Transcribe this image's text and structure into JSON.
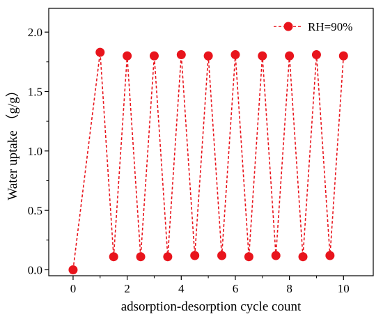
{
  "chart_data": {
    "type": "line",
    "xlabel": "adsorption-desorption cycle count",
    "ylabel": "Water uptake （g/g）",
    "xlim": [
      -0.9,
      11.1
    ],
    "ylim": [
      -0.05,
      2.2
    ],
    "x_ticks": [
      0,
      2,
      4,
      6,
      8,
      10
    ],
    "x_tick_labels": [
      "0",
      "2",
      "4",
      "6",
      "8",
      "10"
    ],
    "y_ticks": [
      0.0,
      0.5,
      1.0,
      1.5,
      2.0
    ],
    "y_tick_labels": [
      "0.0",
      "0.5",
      "1.0",
      "1.5",
      "2.0"
    ],
    "legend_position": "top-right",
    "grid": false,
    "series": [
      {
        "name": "RH=90%",
        "color": "#e8141c",
        "line_style": "dashed",
        "marker": "circle",
        "x": [
          0,
          1,
          1.5,
          2,
          2.5,
          3,
          3.5,
          4,
          4.5,
          5,
          5.5,
          6,
          6.5,
          7,
          7.5,
          8,
          8.5,
          9,
          9.5,
          10
        ],
        "y": [
          0.0,
          1.83,
          0.11,
          1.8,
          0.11,
          1.8,
          0.11,
          1.81,
          0.12,
          1.8,
          0.12,
          1.81,
          0.11,
          1.8,
          0.12,
          1.8,
          0.11,
          1.81,
          0.12,
          1.8
        ]
      }
    ]
  }
}
